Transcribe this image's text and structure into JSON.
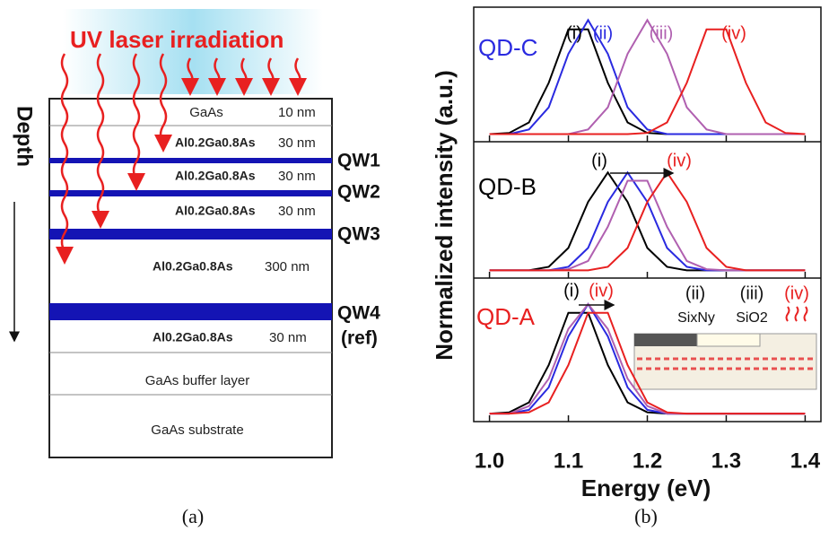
{
  "panel_a": {
    "title": "UV laser irradiation",
    "depth_label": "Depth",
    "layers": [
      {
        "name": "GaAs",
        "thickness": "10 nm"
      },
      {
        "name": "Al0.2Ga0.8As",
        "thickness": "30 nm"
      },
      {
        "name": "Al0.2Ga0.8As",
        "thickness": "30 nm"
      },
      {
        "name": "Al0.2Ga0.8As",
        "thickness": "30 nm"
      },
      {
        "name": "Al0.2Ga0.8As",
        "thickness": "300 nm"
      },
      {
        "name": "Al0.2Ga0.8As",
        "thickness": "30 nm"
      },
      {
        "name": "GaAs buffer layer"
      },
      {
        "name": "GaAs substrate"
      }
    ],
    "wells": [
      "QW1",
      "QW2",
      "QW3",
      "QW4",
      "(ref)"
    ],
    "caption": "(a)"
  },
  "panel_b": {
    "ylabel": "Normalized intensity (a.u.)",
    "xlabel": "Energy (eV)",
    "caption": "(b)",
    "inset": {
      "labels": [
        "(ii)",
        "(iii)",
        "(iv)"
      ],
      "materials": [
        "SixNy",
        "SiO2"
      ]
    }
  },
  "chart_data": [
    {
      "type": "line",
      "label": "QD-C",
      "label_color": "#2a2ae0",
      "xlim": [
        0.98,
        1.42
      ],
      "ylim": [
        -0.03,
        1.08
      ],
      "x": [
        1.0,
        1.025,
        1.05,
        1.075,
        1.1,
        1.125,
        1.15,
        1.175,
        1.2,
        1.225,
        1.25,
        1.275,
        1.3,
        1.325,
        1.35,
        1.375,
        1.4
      ],
      "annotations": [
        {
          "text": "(i)",
          "color": "#000000"
        },
        {
          "text": "(ii)",
          "color": "#2a2ae0"
        },
        {
          "text": "(iii)",
          "color": "#b060b0"
        },
        {
          "text": "(iv)",
          "color": "#e82020"
        }
      ],
      "series": [
        {
          "color": "#000000",
          "values": [
            0.02,
            0.03,
            0.12,
            0.46,
            0.92,
            0.92,
            0.46,
            0.12,
            0.03,
            0.02,
            0.02,
            0.02,
            0.02,
            0.02,
            0.02,
            0.02,
            0.02
          ]
        },
        {
          "color": "#2a2ae0",
          "values": [
            0.02,
            0.02,
            0.06,
            0.25,
            0.71,
            1,
            0.71,
            0.25,
            0.06,
            0.02,
            0.02,
            0.02,
            0.02,
            0.02,
            0.02,
            0.02,
            0.02
          ]
        },
        {
          "color": "#b060b0",
          "values": [
            0.02,
            0.02,
            0.02,
            0.02,
            0.02,
            0.06,
            0.25,
            0.71,
            1,
            0.71,
            0.25,
            0.06,
            0.02,
            0.02,
            0.02,
            0.02,
            0.02
          ]
        },
        {
          "color": "#e82020",
          "values": [
            0.02,
            0.02,
            0.02,
            0.02,
            0.02,
            0.02,
            0.02,
            0.02,
            0.03,
            0.12,
            0.46,
            0.92,
            0.92,
            0.46,
            0.12,
            0.03,
            0.02
          ]
        }
      ]
    },
    {
      "type": "line",
      "label": "QD-B",
      "label_color": "#000000",
      "xlim": [
        0.98,
        1.42
      ],
      "ylim": [
        -0.03,
        1.08
      ],
      "x": [
        1.0,
        1.025,
        1.05,
        1.075,
        1.1,
        1.125,
        1.15,
        1.175,
        1.2,
        1.225,
        1.25,
        1.275,
        1.3,
        1.325,
        1.35,
        1.375,
        1.4
      ],
      "annotations": [
        {
          "text": "(i)",
          "color": "#000000"
        },
        {
          "text": "(iv)",
          "color": "#e82020"
        }
      ],
      "series": [
        {
          "color": "#000000",
          "values": [
            0.02,
            0.02,
            0.02,
            0.05,
            0.21,
            0.6,
            0.85,
            0.6,
            0.21,
            0.05,
            0.02,
            0.02,
            0.02,
            0.02,
            0.02,
            0.02,
            0.02
          ]
        },
        {
          "color": "#2a2ae0",
          "values": [
            0.02,
            0.02,
            0.02,
            0.02,
            0.05,
            0.21,
            0.6,
            0.85,
            0.6,
            0.21,
            0.05,
            0.02,
            0.02,
            0.02,
            0.02,
            0.02,
            0.02
          ]
        },
        {
          "color": "#b060b0",
          "values": [
            0.02,
            0.02,
            0.02,
            0.02,
            0.03,
            0.1,
            0.39,
            0.78,
            0.78,
            0.39,
            0.1,
            0.03,
            0.02,
            0.02,
            0.02,
            0.02,
            0.02
          ]
        },
        {
          "color": "#e82020",
          "values": [
            0.02,
            0.02,
            0.02,
            0.02,
            0.02,
            0.02,
            0.05,
            0.21,
            0.6,
            0.85,
            0.6,
            0.21,
            0.05,
            0.02,
            0.02,
            0.02,
            0.02
          ]
        }
      ]
    },
    {
      "type": "line",
      "label": "QD-A",
      "label_color": "#e82020",
      "xlim": [
        0.98,
        1.42
      ],
      "ylim": [
        -0.03,
        1.08
      ],
      "xticks": [
        {
          "value": 1,
          "label": "1.0"
        },
        1.1,
        1.2,
        1.3,
        1.4
      ],
      "x": [
        1.0,
        1.025,
        1.05,
        1.075,
        1.1,
        1.125,
        1.15,
        1.175,
        1.2,
        1.225,
        1.25,
        1.275,
        1.3,
        1.325,
        1.35,
        1.375,
        1.4
      ],
      "annotations": [
        {
          "text": "(i)",
          "color": "#000000"
        },
        {
          "text": "(iv)",
          "color": "#e82020"
        }
      ],
      "series": [
        {
          "color": "#000000",
          "values": [
            0.02,
            0.03,
            0.11,
            0.41,
            0.83,
            0.83,
            0.41,
            0.11,
            0.03,
            0.02,
            0.02,
            0.02,
            0.02,
            0.02,
            0.02,
            0.02,
            0.02
          ]
        },
        {
          "color": "#2a2ae0",
          "values": [
            0.02,
            0.02,
            0.05,
            0.23,
            0.64,
            0.9,
            0.64,
            0.23,
            0.05,
            0.02,
            0.02,
            0.02,
            0.02,
            0.02,
            0.02,
            0.02,
            0.02
          ]
        },
        {
          "color": "#b060b0",
          "values": [
            0.02,
            0.02,
            0.08,
            0.3,
            0.7,
            0.9,
            0.7,
            0.3,
            0.08,
            0.02,
            0.02,
            0.02,
            0.02,
            0.02,
            0.02,
            0.02,
            0.02
          ]
        },
        {
          "color": "#e82020",
          "values": [
            0.02,
            0.02,
            0.03,
            0.11,
            0.41,
            0.83,
            0.83,
            0.41,
            0.11,
            0.03,
            0.02,
            0.02,
            0.02,
            0.02,
            0.02,
            0.02,
            0.02
          ]
        }
      ]
    }
  ]
}
